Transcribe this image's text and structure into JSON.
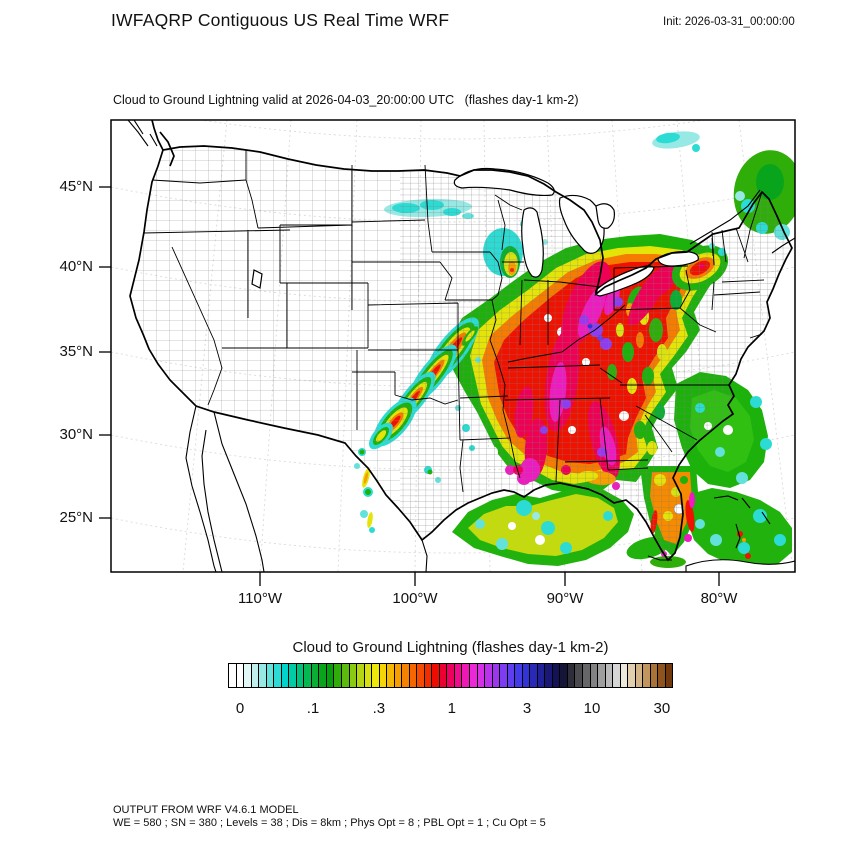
{
  "header": {
    "title": "IWFAQRP Contiguous US Real Time WRF",
    "init": "Init: 2026-03-31_00:00:00"
  },
  "map": {
    "subtitle": "Cloud to Ground Lightning valid at 2026-04-03_20:00:00 UTC   (flashes day-1 km-2)",
    "lat_ticks": [
      "45°N",
      "40°N",
      "35°N",
      "30°N",
      "25°N"
    ],
    "lon_ticks": [
      "110°W",
      "100°W",
      "90°W",
      "80°W"
    ]
  },
  "colorbar": {
    "title": "Cloud to Ground Lightning  (flashes day-1 km-2)",
    "ticks": [
      {
        "label": "0",
        "pos": 0.027
      },
      {
        "label": ".1",
        "pos": 0.191
      },
      {
        "label": ".3",
        "pos": 0.339
      },
      {
        "label": "1",
        "pos": 0.503
      },
      {
        "label": "3",
        "pos": 0.672
      },
      {
        "label": "10",
        "pos": 0.818
      },
      {
        "label": "30",
        "pos": 0.975
      }
    ],
    "colors": [
      "#ffffff",
      "#ffffff",
      "#e0f8f6",
      "#bff0ed",
      "#96e9e4",
      "#62e2da",
      "#2cdcd4",
      "#00d4cc",
      "#00cba6",
      "#00c17b",
      "#04b852",
      "#09ae32",
      "#08a51c",
      "#04a00c",
      "#2fae0a",
      "#5cbc0d",
      "#8aca10",
      "#b4d712",
      "#d8e210",
      "#eee808",
      "#f4d505",
      "#f6b902",
      "#f79e01",
      "#f78200",
      "#f66600",
      "#f54a00",
      "#f22b00",
      "#ee0b00",
      "#eb0031",
      "#ee0060",
      "#f00a8c",
      "#ef18b4",
      "#ec27d8",
      "#d72ee8",
      "#bb32ec",
      "#9c37ef",
      "#7d3bf2",
      "#5f3df0",
      "#433ae8",
      "#3233d6",
      "#2829b8",
      "#202097",
      "#191877",
      "#131257",
      "#151538",
      "#2e2e38",
      "#4a4a4f",
      "#666669",
      "#828284",
      "#9e9e9f",
      "#bababa",
      "#d6d6d6",
      "#ece8da",
      "#e2cfae",
      "#d3b487",
      "#c0955e",
      "#a97338",
      "#8f541e",
      "#72390c"
    ]
  },
  "footer": {
    "line1": "OUTPUT FROM WRF V4.6.1 MODEL",
    "line2": "WE = 580 ; SN = 380 ; Levels = 38 ; Dis = 8km ; Phys Opt = 8 ; PBL Opt = 1 ; Cu Opt = 5"
  }
}
